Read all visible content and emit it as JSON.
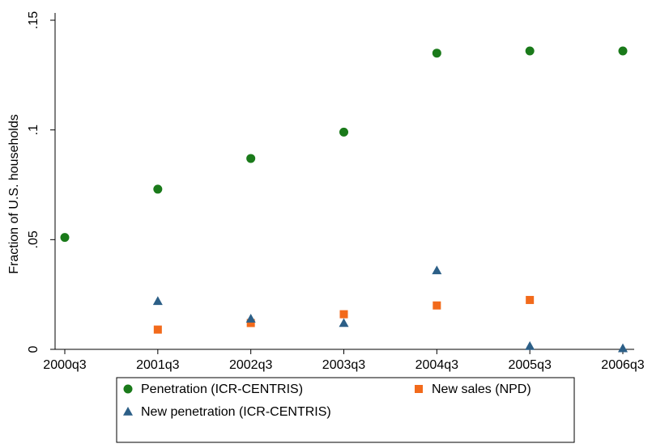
{
  "chart_data": {
    "type": "scatter",
    "ylabel": "Fraction of U.S. households",
    "xlabel": "",
    "categories": [
      "2000q3",
      "2001q3",
      "2002q3",
      "2003q3",
      "2004q3",
      "2005q3",
      "2006q3"
    ],
    "y_ticks": [
      0,
      0.05,
      0.1,
      0.15
    ],
    "y_tick_labels": [
      "0",
      ".05",
      ".1",
      ".15"
    ],
    "ylim": [
      0,
      0.15
    ],
    "grid": false,
    "legend_position": "bottom",
    "series": [
      {
        "name": "Penetration (ICR-CENTRIS)",
        "marker": "circle",
        "color": "#1a7a1a",
        "x": [
          "2000q3",
          "2001q3",
          "2002q3",
          "2003q3",
          "2004q3",
          "2005q3",
          "2006q3"
        ],
        "values": [
          0.051,
          0.073,
          0.087,
          0.099,
          0.135,
          0.136,
          0.136
        ]
      },
      {
        "name": "New sales (NPD)",
        "marker": "square",
        "color": "#f26a1b",
        "x": [
          "2001q3",
          "2002q3",
          "2003q3",
          "2004q3",
          "2005q3"
        ],
        "values": [
          0.009,
          0.012,
          0.016,
          0.02,
          0.0225
        ]
      },
      {
        "name": "New penetration (ICR-CENTRIS)",
        "marker": "triangle",
        "color": "#2c5f87",
        "x": [
          "2001q3",
          "2002q3",
          "2003q3",
          "2004q3",
          "2005q3",
          "2006q3"
        ],
        "values": [
          0.022,
          0.014,
          0.012,
          0.036,
          0.0015,
          0.0005
        ]
      }
    ]
  }
}
